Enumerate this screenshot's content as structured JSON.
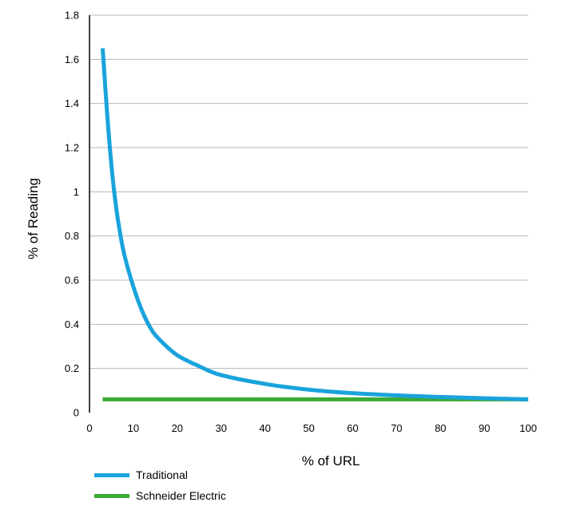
{
  "chart_data": {
    "type": "line",
    "xlabel": "% of URL",
    "ylabel": "% of Reading",
    "xlim": [
      0,
      100
    ],
    "ylim": [
      0,
      1.8
    ],
    "x_ticks": [
      "0",
      "10",
      "20",
      "30",
      "40",
      "50",
      "60",
      "70",
      "80",
      "90",
      "100"
    ],
    "y_ticks": [
      "0",
      "0.2",
      "0.4",
      "0.6",
      "0.8",
      "1",
      "1.2",
      "1.4",
      "1.6",
      "1.8"
    ],
    "grid": "horizontal",
    "legend_position": "bottom-left",
    "series": [
      {
        "name": "Traditional",
        "color": "#1aa3dc",
        "x": [
          3,
          4,
          5,
          6,
          7,
          8,
          10,
          12,
          14,
          16,
          20,
          25,
          30,
          40,
          50,
          60,
          70,
          80,
          90,
          100
        ],
        "y": [
          1.65,
          1.36,
          1.12,
          0.94,
          0.81,
          0.71,
          0.57,
          0.46,
          0.38,
          0.33,
          0.26,
          0.21,
          0.17,
          0.13,
          0.104,
          0.088,
          0.078,
          0.071,
          0.065,
          0.06
        ]
      },
      {
        "name": "Schneider Electric",
        "color": "#3aaa35",
        "x": [
          3,
          100
        ],
        "y": [
          0.06,
          0.06
        ]
      }
    ]
  }
}
